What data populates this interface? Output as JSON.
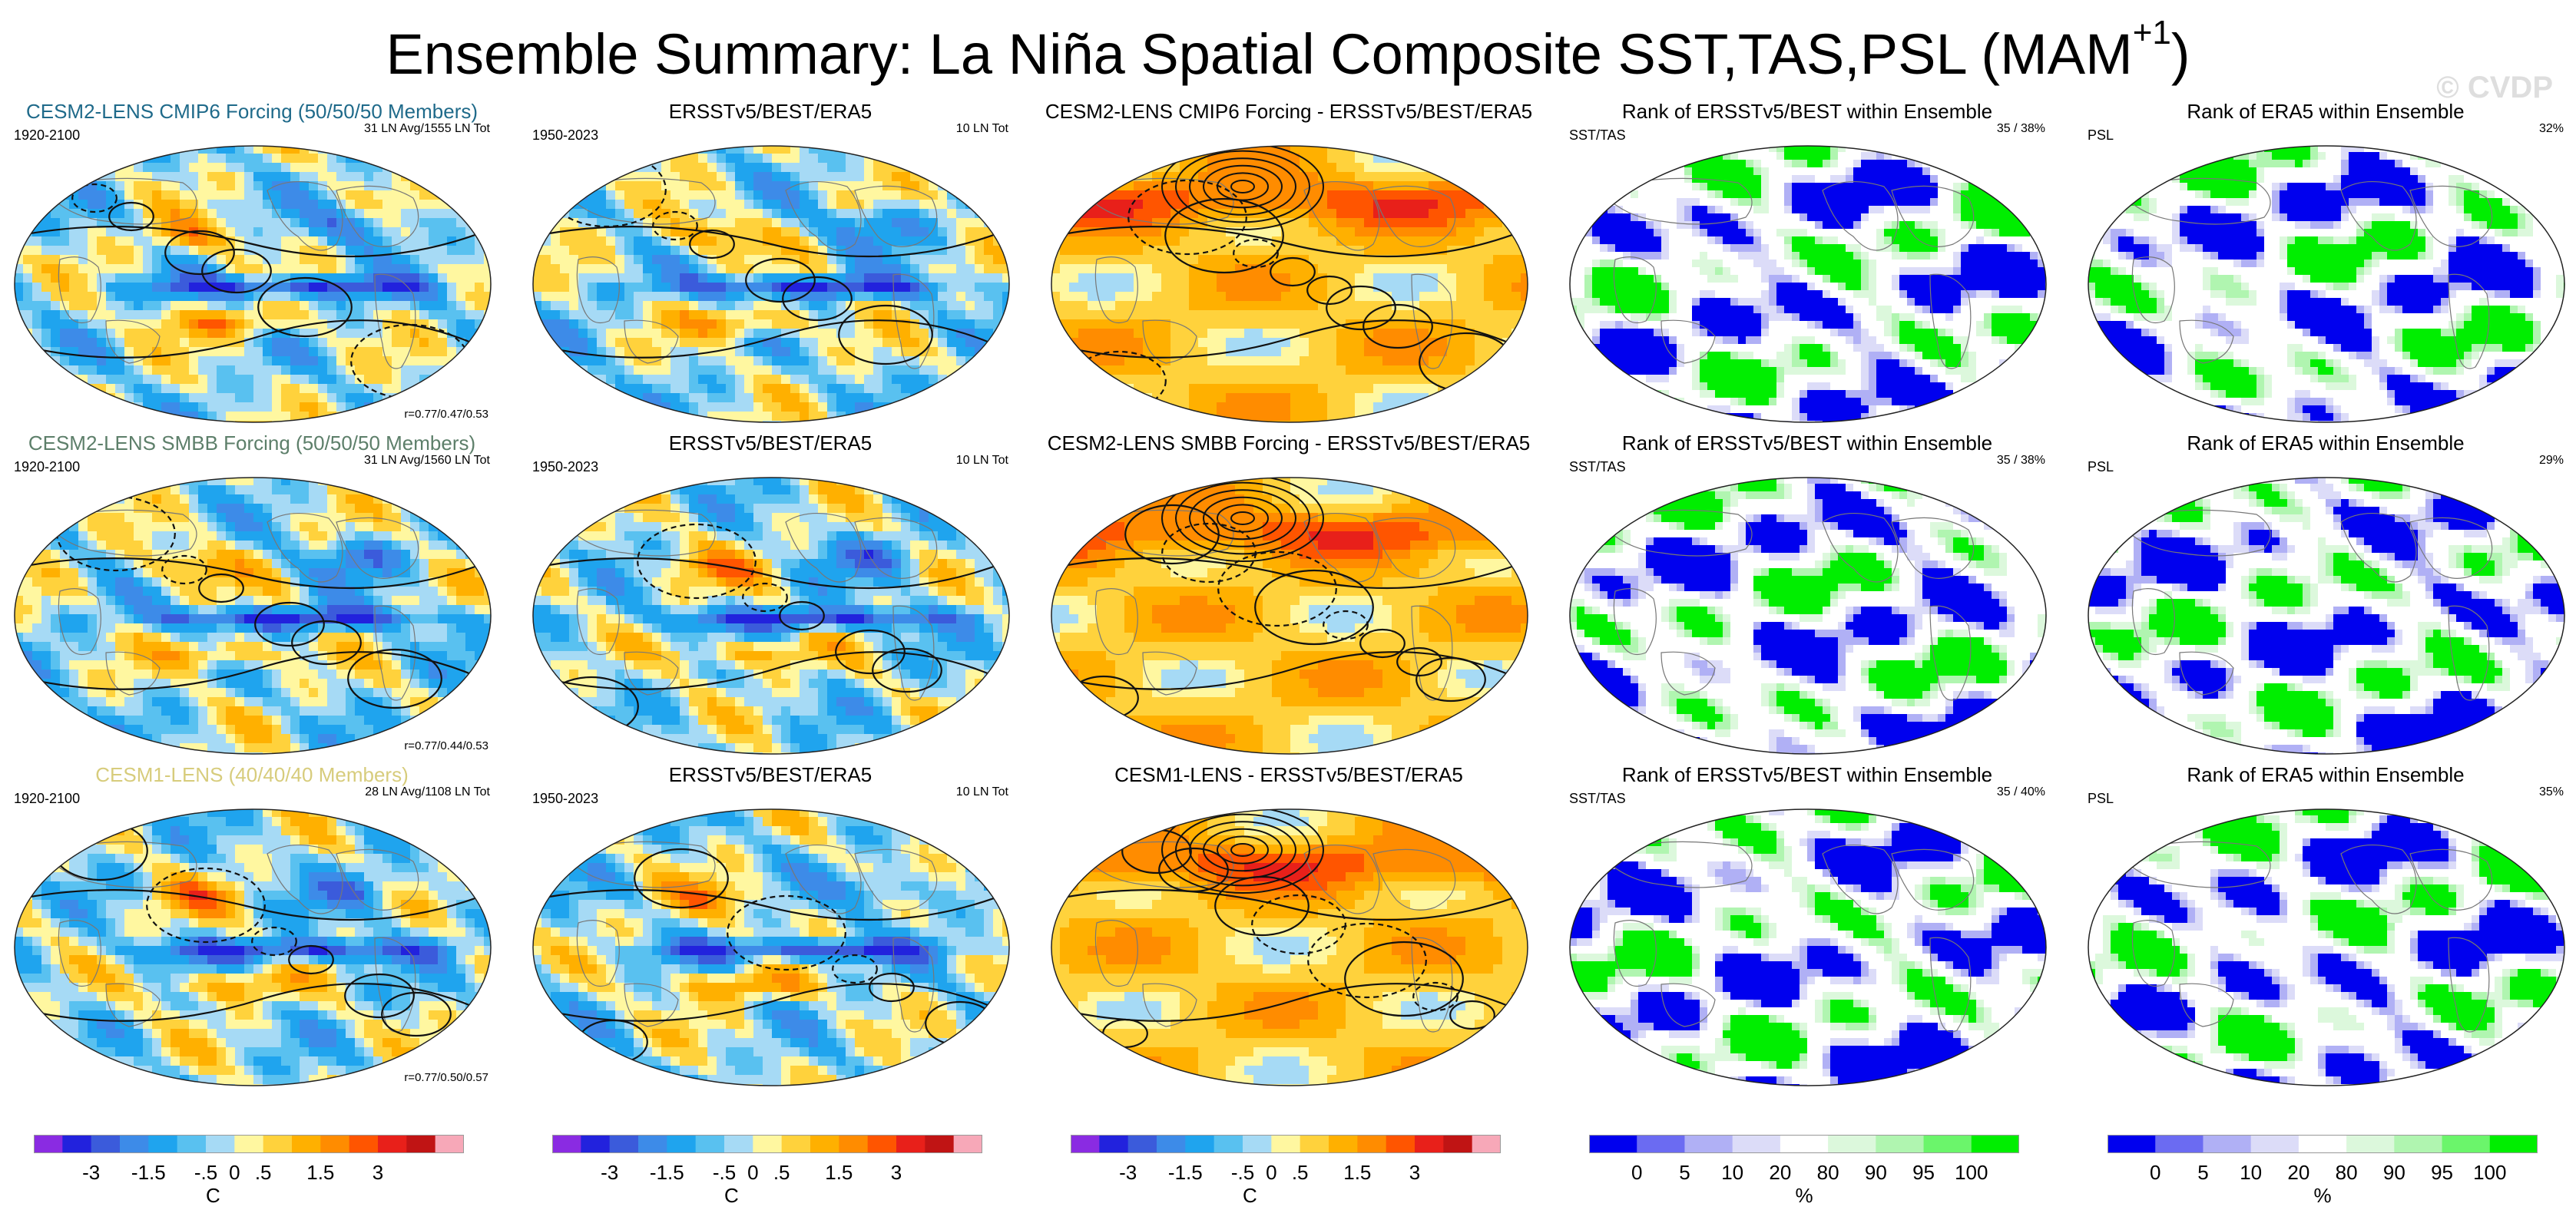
{
  "title": {
    "main": "Ensemble Summary: La Niña Spatial Composite SST,TAS,PSL (MAM",
    "sup": "+1",
    "close": ")"
  },
  "watermark": "© CVDP",
  "colors": {
    "model_title_1": "#1f6a8a",
    "model_title_2": "#5d7f6a",
    "model_title_3": "#d7cc7c"
  },
  "rows": [
    {
      "model_title": "CESM2-LENS CMIP6 Forcing (50/50/50 Members)",
      "model_period": "1920-2100",
      "model_count": "31 LN Avg/1555 LN Tot",
      "model_corr": "r=0.77/0.47/0.53",
      "obs_title": "ERSSTv5/BEST/ERA5",
      "obs_period": "1950-2023",
      "obs_count": "10 LN Tot",
      "diff_title": "CESM2-LENS CMIP6 Forcing - ERSSTv5/BEST/ERA5",
      "rank1_title": "Rank of ERSSTv5/BEST within Ensemble",
      "rank1_label": "SST/TAS",
      "rank1_pct": "35 /  38%",
      "rank2_title": "Rank of ERA5 within Ensemble",
      "rank2_label": "PSL",
      "rank2_pct": "32%"
    },
    {
      "model_title": "CESM2-LENS SMBB Forcing (50/50/50 Members)",
      "model_period": "1920-2100",
      "model_count": "31 LN Avg/1560 LN Tot",
      "model_corr": "r=0.77/0.44/0.53",
      "obs_title": "ERSSTv5/BEST/ERA5",
      "obs_period": "1950-2023",
      "obs_count": "10 LN Tot",
      "diff_title": "CESM2-LENS SMBB Forcing - ERSSTv5/BEST/ERA5",
      "rank1_title": "Rank of ERSSTv5/BEST within Ensemble",
      "rank1_label": "SST/TAS",
      "rank1_pct": "35 /  38%",
      "rank2_title": "Rank of ERA5 within Ensemble",
      "rank2_label": "PSL",
      "rank2_pct": "29%"
    },
    {
      "model_title": "CESM1-LENS (40/40/40 Members)",
      "model_period": "1920-2100",
      "model_count": "28 LN Avg/1108 LN Tot",
      "model_corr": "r=0.77/0.50/0.57",
      "obs_title": "ERSSTv5/BEST/ERA5",
      "obs_period": "1950-2023",
      "obs_count": "10 LN Tot",
      "diff_title": "CESM1-LENS - ERSSTv5/BEST/ERA5",
      "rank1_title": "Rank of ERSSTv5/BEST within Ensemble",
      "rank1_label": "SST/TAS",
      "rank1_pct": "35 /  40%",
      "rank2_title": "Rank of ERA5 within Ensemble",
      "rank2_label": "PSL",
      "rank2_pct": "35%"
    }
  ],
  "chart_data": {
    "type": "heatmap",
    "title": "Ensemble Summary: La Niña Spatial Composite SST,TAS,PSL (MAM+1)",
    "temp_colorbar": {
      "unit": "C",
      "tick_labels": [
        "-3",
        "-1.5",
        "-.5",
        "0",
        ".5",
        "1.5",
        "3"
      ],
      "colors": [
        "#8a2be2",
        "#2222dd",
        "#3b5bdb",
        "#3d8be8",
        "#1fa4ee",
        "#59c1f0",
        "#a6daf5",
        "#fff7a0",
        "#ffd23c",
        "#ffb000",
        "#ff8c00",
        "#ff5500",
        "#e8201a",
        "#c01414",
        "#f7a8b8"
      ]
    },
    "rank_colorbar": {
      "unit": "%",
      "tick_labels": [
        "0",
        "5",
        "10",
        "20",
        "80",
        "90",
        "95",
        "100"
      ],
      "colors": [
        "#0000ee",
        "#6b6bf2",
        "#b0b0f5",
        "#dcdcf8",
        "#ffffff",
        "#dcf8dc",
        "#b0f5b0",
        "#6bf56b",
        "#00ee00"
      ]
    }
  }
}
